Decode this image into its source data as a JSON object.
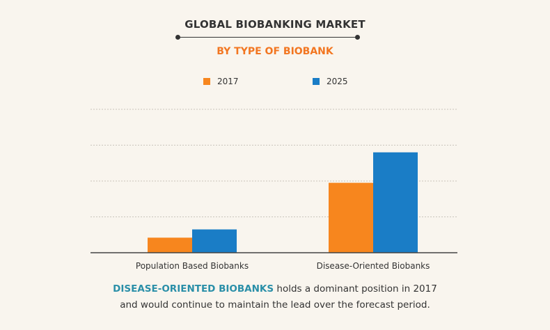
{
  "chart_data": {
    "type": "bar",
    "title": "GLOBAL BIOBANKING MARKET",
    "subtitle": "BY TYPE OF BIOBANK",
    "categories": [
      "Population Based Biobanks",
      "Disease-Oriented Biobanks"
    ],
    "series": [
      {
        "name": "2017",
        "values": [
          0.42,
          1.95
        ]
      },
      {
        "name": "2025",
        "values": [
          0.65,
          2.8
        ]
      }
    ],
    "ylim": [
      0,
      4
    ],
    "grid": true,
    "legend": "top-center",
    "colors": {
      "2017": "#f7861e",
      "2025": "#1a7dc6"
    }
  },
  "caption": {
    "highlight": "DISEASE-ORIENTED BIOBANKS",
    "line1_rest": " holds a dominant position in 2017",
    "line2": "and would continue to maintain the lead over the forecast period."
  },
  "colors": {
    "subtitle": "#f27621",
    "highlight": "#2a8fa8",
    "title_rule": "#333333"
  }
}
